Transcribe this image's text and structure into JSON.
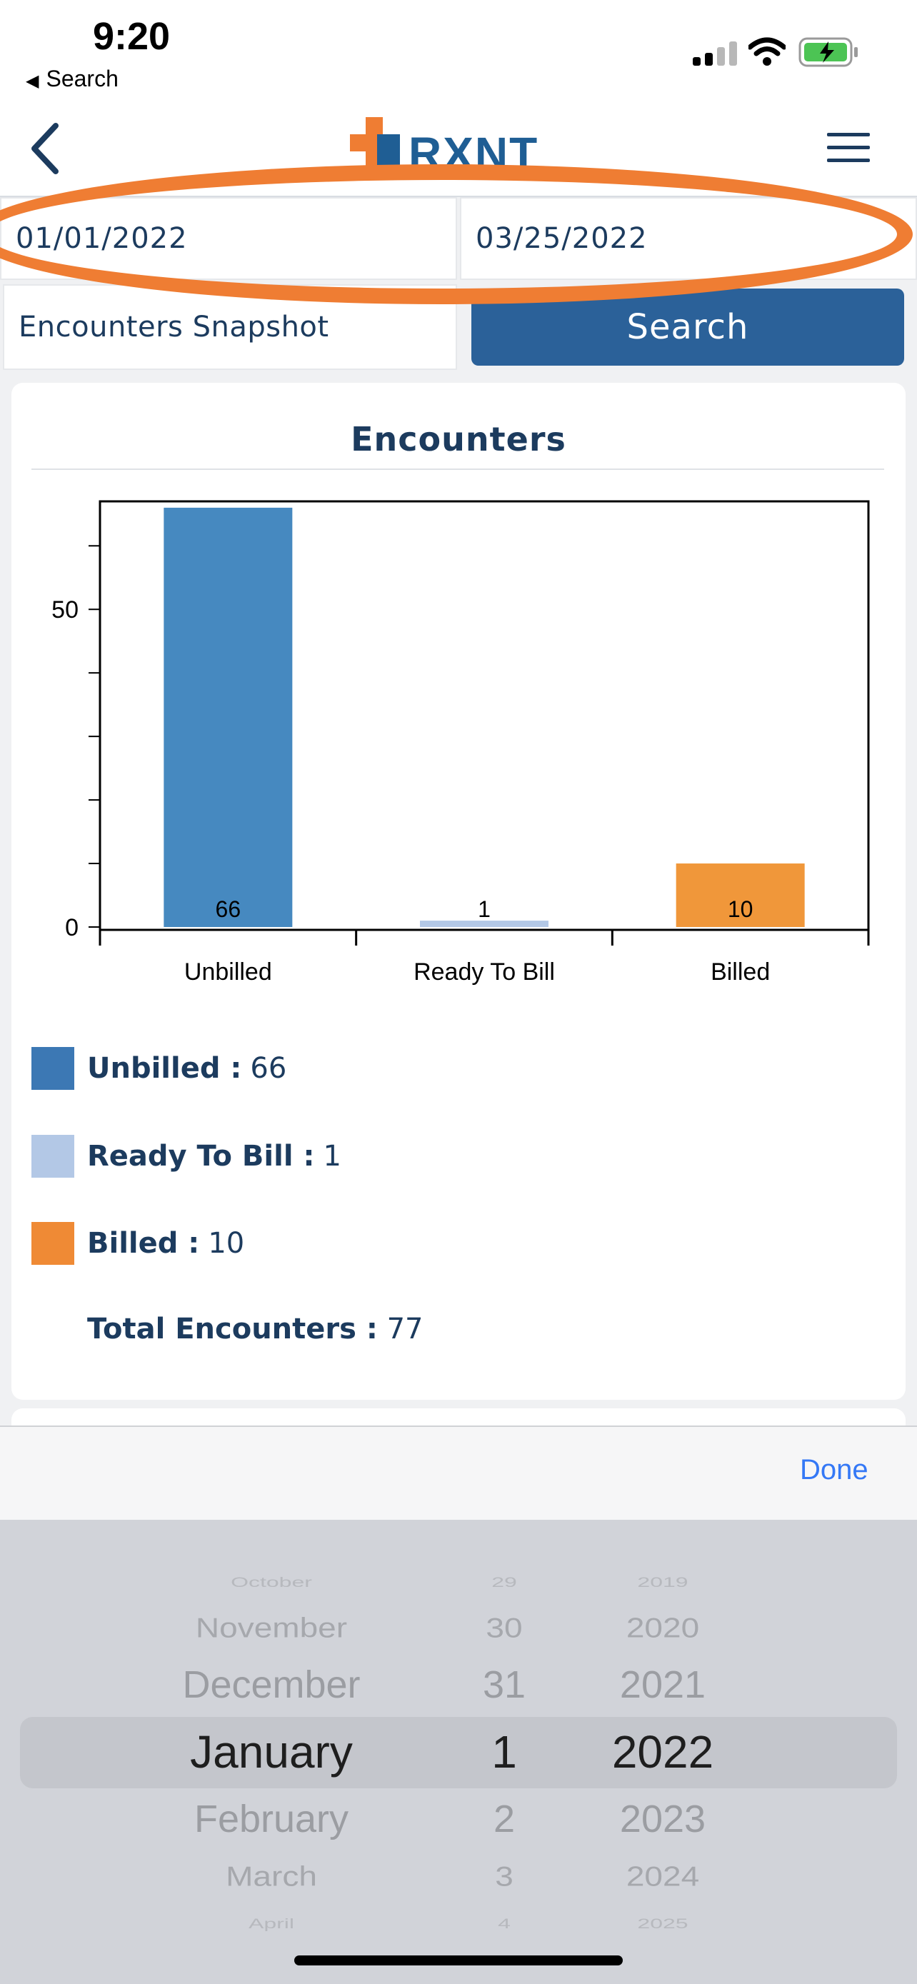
{
  "status_bar": {
    "time": "9:20",
    "back_app_label": "Search"
  },
  "nav": {
    "logo_text": "RXNT"
  },
  "filters": {
    "start_date": "01/01/2022",
    "end_date": "03/25/2022",
    "report_type": "Encounters Snapshot",
    "search_label": "Search"
  },
  "card": {
    "title": "Encounters"
  },
  "chart_data": {
    "type": "bar",
    "title": "",
    "categories": [
      "Unbilled",
      "Ready To Bill",
      "Billed"
    ],
    "values": [
      66,
      1,
      10
    ],
    "colors": [
      "#4689c0",
      "#b3c8e6",
      "#f0973a"
    ],
    "y_ticks": [
      0,
      50
    ],
    "ylim": [
      0,
      67
    ],
    "data_labels": [
      "66",
      "1",
      "10"
    ],
    "grid": false
  },
  "legend": {
    "items": [
      {
        "label": "Unbilled :",
        "value": "66",
        "color": "#3c78b4"
      },
      {
        "label": "Ready To Bill :",
        "value": "1",
        "color": "#b3c8e6"
      },
      {
        "label": "Billed :",
        "value": "10",
        "color": "#ef8a35"
      }
    ],
    "total_label": "Total Encounters :",
    "total_value": "77"
  },
  "picker": {
    "done_label": "Done",
    "months": [
      "October",
      "November",
      "December",
      "January",
      "February",
      "March",
      "April"
    ],
    "days": [
      "29",
      "30",
      "31",
      "1",
      "2",
      "3",
      "4"
    ],
    "years": [
      "2019",
      "2020",
      "2021",
      "2022",
      "2023",
      "2024",
      "2025"
    ]
  },
  "colors": {
    "accent": "#2b6199",
    "annotation": "#ef7d33",
    "link": "#3478f6"
  }
}
